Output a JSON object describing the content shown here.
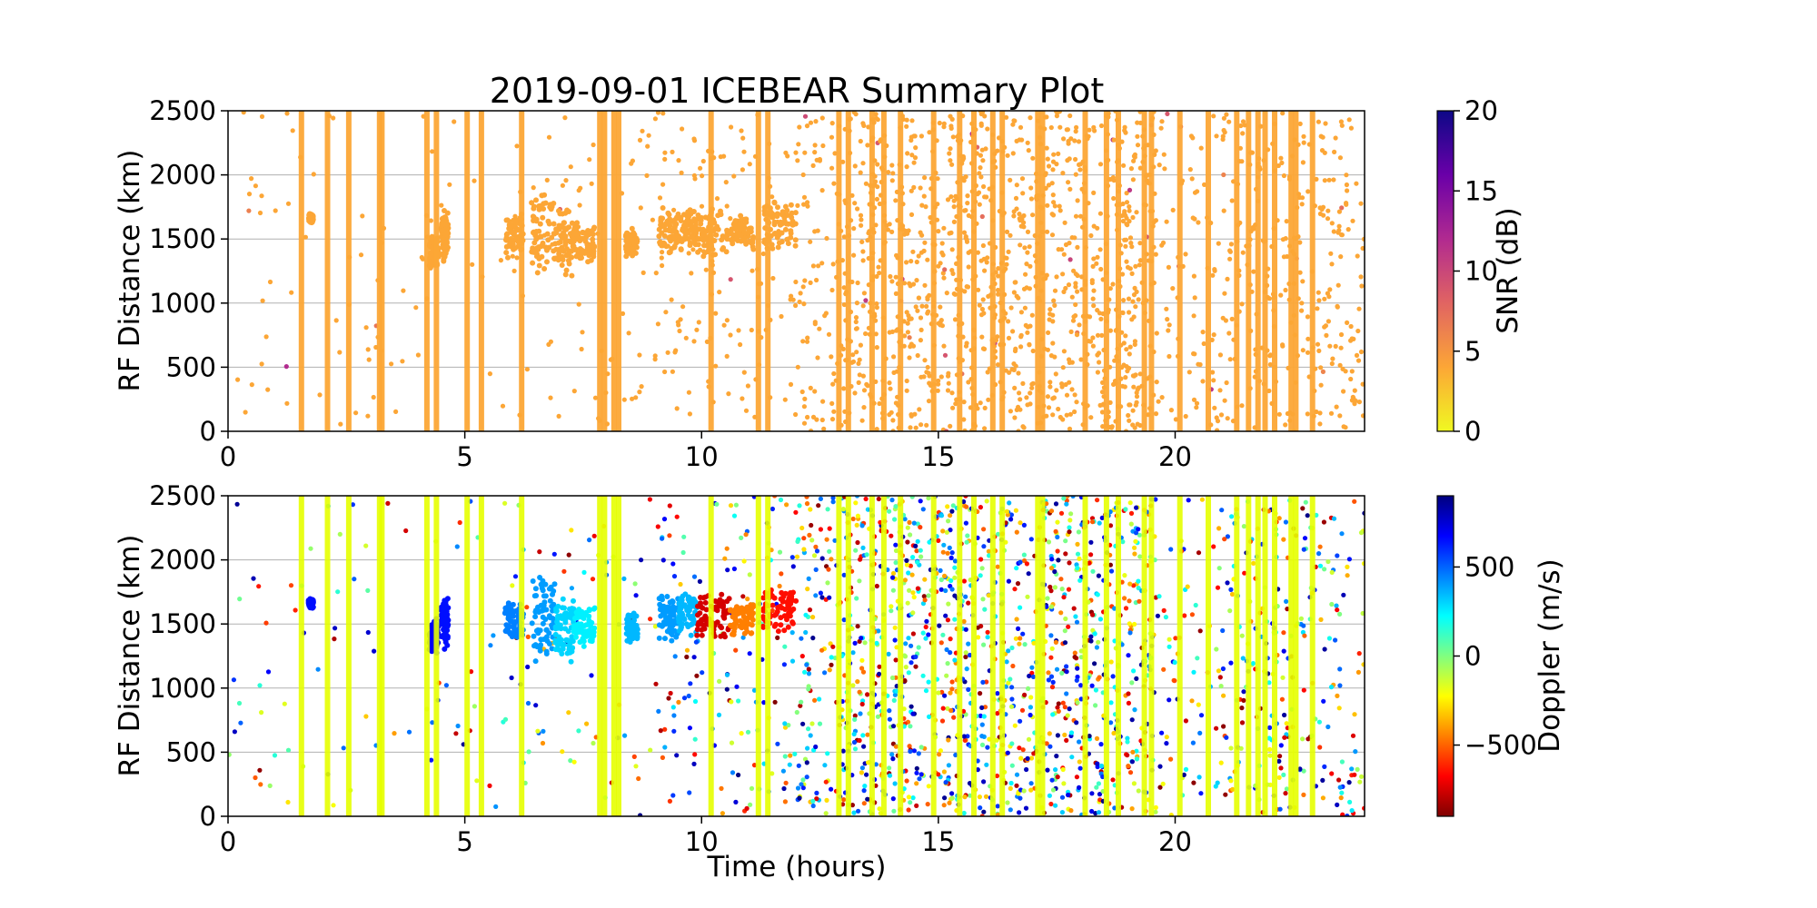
{
  "figure": {
    "title": "2019-09-01 ICEBEAR Summary Plot",
    "xlabel": "Time (hours)"
  },
  "chart_data": [
    {
      "type": "scatter",
      "ylabel": "RF Distance (km)",
      "xlim": [
        0,
        24
      ],
      "ylim": [
        0,
        2500
      ],
      "x_ticks": [
        0,
        5,
        10,
        15,
        20
      ],
      "y_ticks": [
        0,
        500,
        1000,
        1500,
        2000,
        2500
      ],
      "grid": "horizontal",
      "colorbar": {
        "label": "SNR (dB)",
        "range": [
          0,
          20
        ],
        "ticks": [
          0,
          5,
          10,
          15,
          20
        ],
        "colormap": "plasma_r",
        "colors": [
          "#f0f921",
          "#fca636",
          "#e16462",
          "#b12a90",
          "#6a00a8",
          "#0d0887"
        ]
      },
      "dominant_color": "#fca636",
      "dominant_value_db": 3,
      "features": {
        "full_height_streaks_hours": [
          1.55,
          2.1,
          2.55,
          3.2,
          3.25,
          4.2,
          4.4,
          5.05,
          5.35,
          6.2,
          7.85,
          7.95,
          8.15,
          8.25,
          10.2,
          11.2,
          11.4,
          12.9,
          13.1,
          13.6,
          13.85,
          14.2,
          14.9,
          15.45,
          15.75,
          16.15,
          16.35,
          17.1,
          17.2,
          18.1,
          18.55,
          18.8,
          19.35,
          19.5,
          20.1,
          20.7,
          21.3,
          21.55,
          21.75,
          21.9,
          22.1,
          22.45,
          22.55,
          22.9
        ],
        "echo_clusters": [
          {
            "t0": 1.7,
            "t1": 1.8,
            "d0": 1620,
            "d1": 1700
          },
          {
            "t0": 4.25,
            "t1": 4.45,
            "d0": 1250,
            "d1": 1550
          },
          {
            "t0": 4.5,
            "t1": 4.65,
            "d0": 1300,
            "d1": 1750
          },
          {
            "t0": 5.85,
            "t1": 6.25,
            "d0": 1350,
            "d1": 1700
          },
          {
            "t0": 6.4,
            "t1": 6.9,
            "d0": 1150,
            "d1": 1900
          },
          {
            "t0": 6.9,
            "t1": 7.3,
            "d0": 1200,
            "d1": 1750
          },
          {
            "t0": 7.3,
            "t1": 7.75,
            "d0": 1300,
            "d1": 1650
          },
          {
            "t0": 8.4,
            "t1": 8.65,
            "d0": 1350,
            "d1": 1600
          },
          {
            "t0": 9.1,
            "t1": 9.5,
            "d0": 1350,
            "d1": 1750
          },
          {
            "t0": 9.5,
            "t1": 9.9,
            "d0": 1400,
            "d1": 1750
          },
          {
            "t0": 9.9,
            "t1": 10.6,
            "d0": 1350,
            "d1": 1750
          },
          {
            "t0": 10.6,
            "t1": 11.1,
            "d0": 1400,
            "d1": 1700
          },
          {
            "t0": 11.3,
            "t1": 12.0,
            "d0": 1400,
            "d1": 1800
          }
        ]
      }
    },
    {
      "type": "scatter",
      "ylabel": "RF Distance (km)",
      "xlim": [
        0,
        24
      ],
      "ylim": [
        0,
        2500
      ],
      "x_ticks": [
        0,
        5,
        10,
        15,
        20
      ],
      "y_ticks": [
        0,
        500,
        1000,
        1500,
        2000,
        2500
      ],
      "grid": "horizontal",
      "colorbar": {
        "label": "Doppler (m/s)",
        "range": [
          -900,
          900
        ],
        "ticks": [
          -500,
          0,
          500
        ],
        "tick_labels": [
          "−500",
          "0",
          "500"
        ],
        "colormap": "jet_r",
        "colors": [
          "#7f0000",
          "#ff0000",
          "#ff7f00",
          "#ffff00",
          "#80ff80",
          "#00ffff",
          "#0080ff",
          "#0000ff",
          "#00007f"
        ]
      },
      "streak_color": "#e6ff00",
      "streak_doppler_ms": -300,
      "features": {
        "full_height_streaks_hours": [
          1.55,
          2.1,
          2.55,
          3.2,
          3.25,
          4.2,
          4.4,
          5.05,
          5.35,
          6.2,
          7.85,
          7.95,
          8.15,
          8.25,
          10.2,
          11.2,
          11.4,
          12.9,
          13.1,
          13.6,
          13.85,
          14.2,
          14.9,
          15.45,
          15.75,
          16.15,
          16.35,
          17.1,
          17.2,
          18.1,
          18.55,
          18.8,
          19.35,
          19.5,
          20.1,
          20.7,
          21.3,
          21.55,
          21.75,
          21.9,
          22.1,
          22.45,
          22.55,
          22.9
        ],
        "echo_clusters": [
          {
            "t0": 1.7,
            "t1": 1.8,
            "d0": 1620,
            "d1": 1700,
            "doppler": 650
          },
          {
            "t0": 4.25,
            "t1": 4.45,
            "d0": 1250,
            "d1": 1550,
            "doppler": 700
          },
          {
            "t0": 4.5,
            "t1": 4.65,
            "d0": 1300,
            "d1": 1750,
            "doppler": 650
          },
          {
            "t0": 5.85,
            "t1": 6.25,
            "d0": 1350,
            "d1": 1700,
            "doppler": 450
          },
          {
            "t0": 6.4,
            "t1": 6.9,
            "d0": 1150,
            "d1": 1900,
            "doppler": 400
          },
          {
            "t0": 6.9,
            "t1": 7.3,
            "d0": 1200,
            "d1": 1750,
            "doppler": 300
          },
          {
            "t0": 7.3,
            "t1": 7.75,
            "d0": 1300,
            "d1": 1650,
            "doppler": 250
          },
          {
            "t0": 8.4,
            "t1": 8.65,
            "d0": 1350,
            "d1": 1600,
            "doppler": 350
          },
          {
            "t0": 9.1,
            "t1": 9.5,
            "d0": 1350,
            "d1": 1750,
            "doppler": 400
          },
          {
            "t0": 9.5,
            "t1": 9.9,
            "d0": 1400,
            "d1": 1750,
            "doppler": 350
          },
          {
            "t0": 9.9,
            "t1": 10.6,
            "d0": 1350,
            "d1": 1750,
            "doppler": -750
          },
          {
            "t0": 10.6,
            "t1": 11.1,
            "d0": 1400,
            "d1": 1700,
            "doppler": -450
          },
          {
            "t0": 11.3,
            "t1": 12.0,
            "d0": 1400,
            "d1": 1800,
            "doppler": -650
          }
        ]
      }
    }
  ]
}
